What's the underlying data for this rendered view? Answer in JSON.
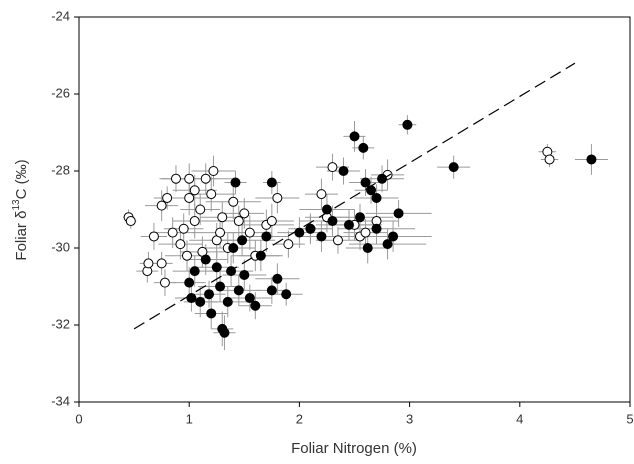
{
  "chart_data": {
    "type": "scatter",
    "xlabel": "Foliar Nitrogen (%)",
    "ylabel": {
      "prefix": "Foliar δ",
      "sup": "13",
      "suffix": "C (‰)"
    },
    "xlim": [
      0,
      5
    ],
    "ylim": [
      -34,
      -24
    ],
    "xticks": [
      0,
      1,
      2,
      3,
      4,
      5
    ],
    "yticks": [
      -34,
      -32,
      -30,
      -28,
      -26,
      -24
    ],
    "grid": false,
    "error_color": "#9a9a9a",
    "series": [
      {
        "marker": "open",
        "color": "#000000",
        "x": [
          0.45,
          0.47,
          0.62,
          0.63,
          0.68,
          0.75,
          0.78,
          0.75,
          0.8,
          0.85,
          0.88,
          0.92,
          0.95,
          1.0,
          1.0,
          1.05,
          1.1,
          1.12,
          1.15,
          1.2,
          1.22,
          1.25,
          1.3,
          1.35,
          1.4,
          1.45,
          1.5,
          1.55,
          1.6,
          1.7,
          1.75,
          1.8,
          1.9,
          2.1,
          2.2,
          2.25,
          2.3,
          2.35,
          2.5,
          2.55,
          2.6,
          2.7,
          2.8,
          4.25,
          4.27,
          1.05,
          0.98,
          1.28
        ],
        "values": [
          -29.2,
          -29.3,
          -30.6,
          -30.4,
          -29.7,
          -30.4,
          -30.9,
          -28.9,
          -28.7,
          -29.6,
          -28.2,
          -29.9,
          -29.5,
          -28.7,
          -28.2,
          -29.3,
          -29.0,
          -30.1,
          -28.2,
          -28.6,
          -28.0,
          -29.8,
          -29.2,
          -30.0,
          -28.8,
          -29.3,
          -29.1,
          -29.6,
          -30.2,
          -29.4,
          -29.3,
          -28.7,
          -29.9,
          -29.5,
          -28.6,
          -29.2,
          -27.9,
          -29.8,
          -29.4,
          -29.7,
          -29.6,
          -29.3,
          -28.1,
          -27.5,
          -27.7,
          -28.5,
          -30.2,
          -29.6
        ],
        "xerr": [
          0.05,
          0.05,
          0.1,
          0.08,
          0.12,
          0.1,
          0.1,
          0.15,
          0.12,
          0.2,
          0.15,
          0.2,
          0.18,
          0.2,
          0.25,
          0.2,
          0.18,
          0.2,
          0.25,
          0.22,
          0.2,
          0.25,
          0.2,
          0.22,
          0.25,
          0.2,
          0.18,
          0.2,
          0.22,
          0.25,
          0.2,
          0.2,
          0.15,
          0.15,
          0.15,
          0.2,
          0.15,
          0.2,
          0.2,
          0.15,
          0.2,
          0.2,
          0.15,
          0.08,
          0.08,
          0.2,
          0.2,
          0.25
        ],
        "yerr": [
          0.2,
          0.2,
          0.3,
          0.3,
          0.35,
          0.3,
          0.35,
          0.4,
          0.3,
          0.4,
          0.35,
          0.4,
          0.4,
          0.45,
          0.4,
          0.45,
          0.4,
          0.4,
          0.4,
          0.45,
          0.4,
          0.45,
          0.4,
          0.4,
          0.45,
          0.4,
          0.4,
          0.45,
          0.4,
          0.4,
          0.45,
          0.4,
          0.35,
          0.35,
          0.4,
          0.4,
          0.35,
          0.35,
          0.4,
          0.35,
          0.35,
          0.4,
          0.4,
          0.2,
          0.2,
          0.4,
          0.4,
          0.4
        ]
      },
      {
        "marker": "filled",
        "color": "#000000",
        "x": [
          1.0,
          1.02,
          1.05,
          1.1,
          1.15,
          1.18,
          1.2,
          1.25,
          1.28,
          1.3,
          1.32,
          1.35,
          1.38,
          1.4,
          1.42,
          1.45,
          1.5,
          1.55,
          1.6,
          1.65,
          1.7,
          1.75,
          1.75,
          1.8,
          1.88,
          2.0,
          2.1,
          2.2,
          2.25,
          2.3,
          2.4,
          2.45,
          2.5,
          2.55,
          2.58,
          2.6,
          2.62,
          2.65,
          2.7,
          2.75,
          2.85,
          2.9,
          2.98,
          3.4,
          4.65,
          2.8,
          2.7,
          1.48
        ],
        "values": [
          -30.9,
          -31.3,
          -30.6,
          -31.4,
          -30.3,
          -31.2,
          -31.7,
          -30.5,
          -31.0,
          -32.1,
          -32.2,
          -31.4,
          -30.6,
          -30.0,
          -28.3,
          -31.1,
          -30.7,
          -31.3,
          -31.5,
          -30.2,
          -29.7,
          -31.1,
          -28.3,
          -30.8,
          -31.2,
          -29.6,
          -29.5,
          -29.7,
          -29.0,
          -29.3,
          -28.0,
          -29.4,
          -27.1,
          -29.2,
          -27.4,
          -28.3,
          -30.0,
          -28.5,
          -29.5,
          -28.2,
          -29.7,
          -29.1,
          -26.8,
          -27.9,
          -27.7,
          -29.9,
          -28.7,
          -29.8
        ],
        "xerr": [
          0.15,
          0.15,
          0.2,
          0.15,
          0.2,
          0.15,
          0.15,
          0.2,
          0.2,
          0.1,
          0.1,
          0.2,
          0.2,
          0.2,
          0.1,
          0.2,
          0.2,
          0.2,
          0.15,
          0.2,
          0.2,
          0.15,
          0.08,
          0.2,
          0.15,
          0.2,
          0.2,
          0.2,
          0.25,
          0.3,
          0.15,
          0.3,
          0.1,
          0.3,
          0.1,
          0.15,
          0.2,
          0.15,
          0.35,
          0.2,
          0.35,
          0.3,
          0.08,
          0.15,
          0.15,
          0.35,
          0.2,
          0.3
        ],
        "yerr": [
          0.4,
          0.35,
          0.4,
          0.4,
          0.4,
          0.35,
          0.4,
          0.4,
          0.4,
          0.45,
          0.45,
          0.4,
          0.4,
          0.4,
          0.3,
          0.4,
          0.4,
          0.35,
          0.35,
          0.4,
          0.4,
          0.35,
          0.3,
          0.4,
          0.3,
          0.4,
          0.4,
          0.4,
          0.4,
          0.4,
          0.35,
          0.4,
          0.4,
          0.35,
          0.3,
          0.35,
          0.4,
          0.35,
          0.4,
          0.35,
          0.4,
          0.35,
          0.25,
          0.3,
          0.4,
          0.4,
          0.35,
          0.4
        ]
      }
    ],
    "trend_line": {
      "x": [
        0.5,
        4.5
      ],
      "y": [
        -32.1,
        -25.2
      ],
      "color": "#000000"
    }
  }
}
